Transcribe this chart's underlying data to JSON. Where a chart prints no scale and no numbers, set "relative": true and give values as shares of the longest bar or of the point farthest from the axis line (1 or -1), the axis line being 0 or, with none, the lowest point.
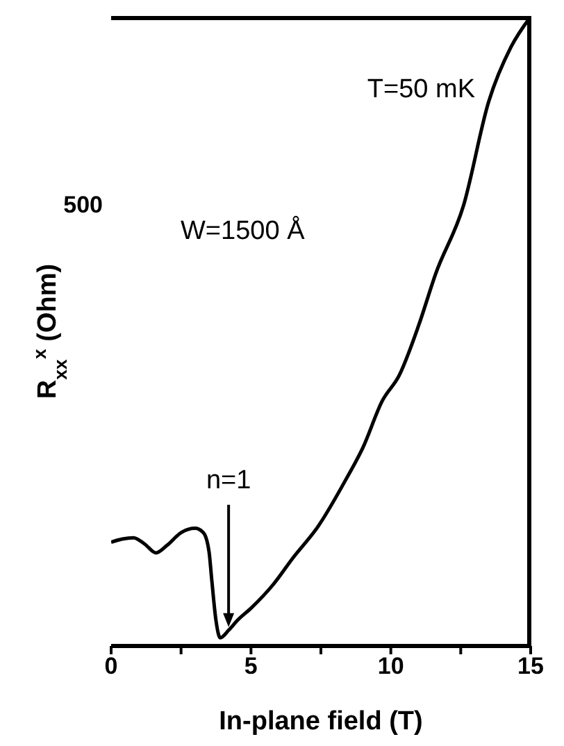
{
  "chart_data": {
    "type": "line",
    "relative": true,
    "xlabel": "In-plane field (T)",
    "ylabel": "R$_{xx}$$^{x}$ (Ohm)",
    "xlim": [
      0,
      15
    ],
    "xticks": [
      0,
      {
        "value": 2.5,
        "label": null
      },
      5,
      {
        "value": 7.5,
        "label": null
      },
      10,
      {
        "value": 12.5,
        "label": null
      },
      15
    ],
    "x": [
      0,
      0.4,
      0.8,
      1.2,
      1.6,
      2.0,
      2.5,
      3.0,
      3.3,
      3.5,
      3.6,
      3.75,
      3.9,
      4.2,
      4.5,
      5.0,
      5.8,
      6.5,
      7.4,
      8.4,
      9.0,
      9.7,
      10.3,
      11.0,
      11.6,
      12.6,
      13.5,
      14.3,
      15
    ],
    "series": [
      {
        "color": "#000000",
        "values": [
          0.165,
          0.17,
          0.172,
          0.162,
          0.148,
          0.16,
          0.18,
          0.187,
          0.18,
          0.15,
          0.104,
          0.04,
          0.013,
          0.025,
          0.04,
          0.06,
          0.098,
          0.14,
          0.19,
          0.265,
          0.315,
          0.39,
          0.43,
          0.51,
          0.591,
          0.7,
          0.865,
          0.952,
          1.0
        ]
      }
    ],
    "marker": "none",
    "line_style": "solid",
    "tick_labels": "x",
    "annotations": [
      "500",
      "T=50 mK",
      "W=1500 Å",
      {
        "text": "n=1",
        "x": 4.2,
        "y": 0.03
      }
    ]
  }
}
